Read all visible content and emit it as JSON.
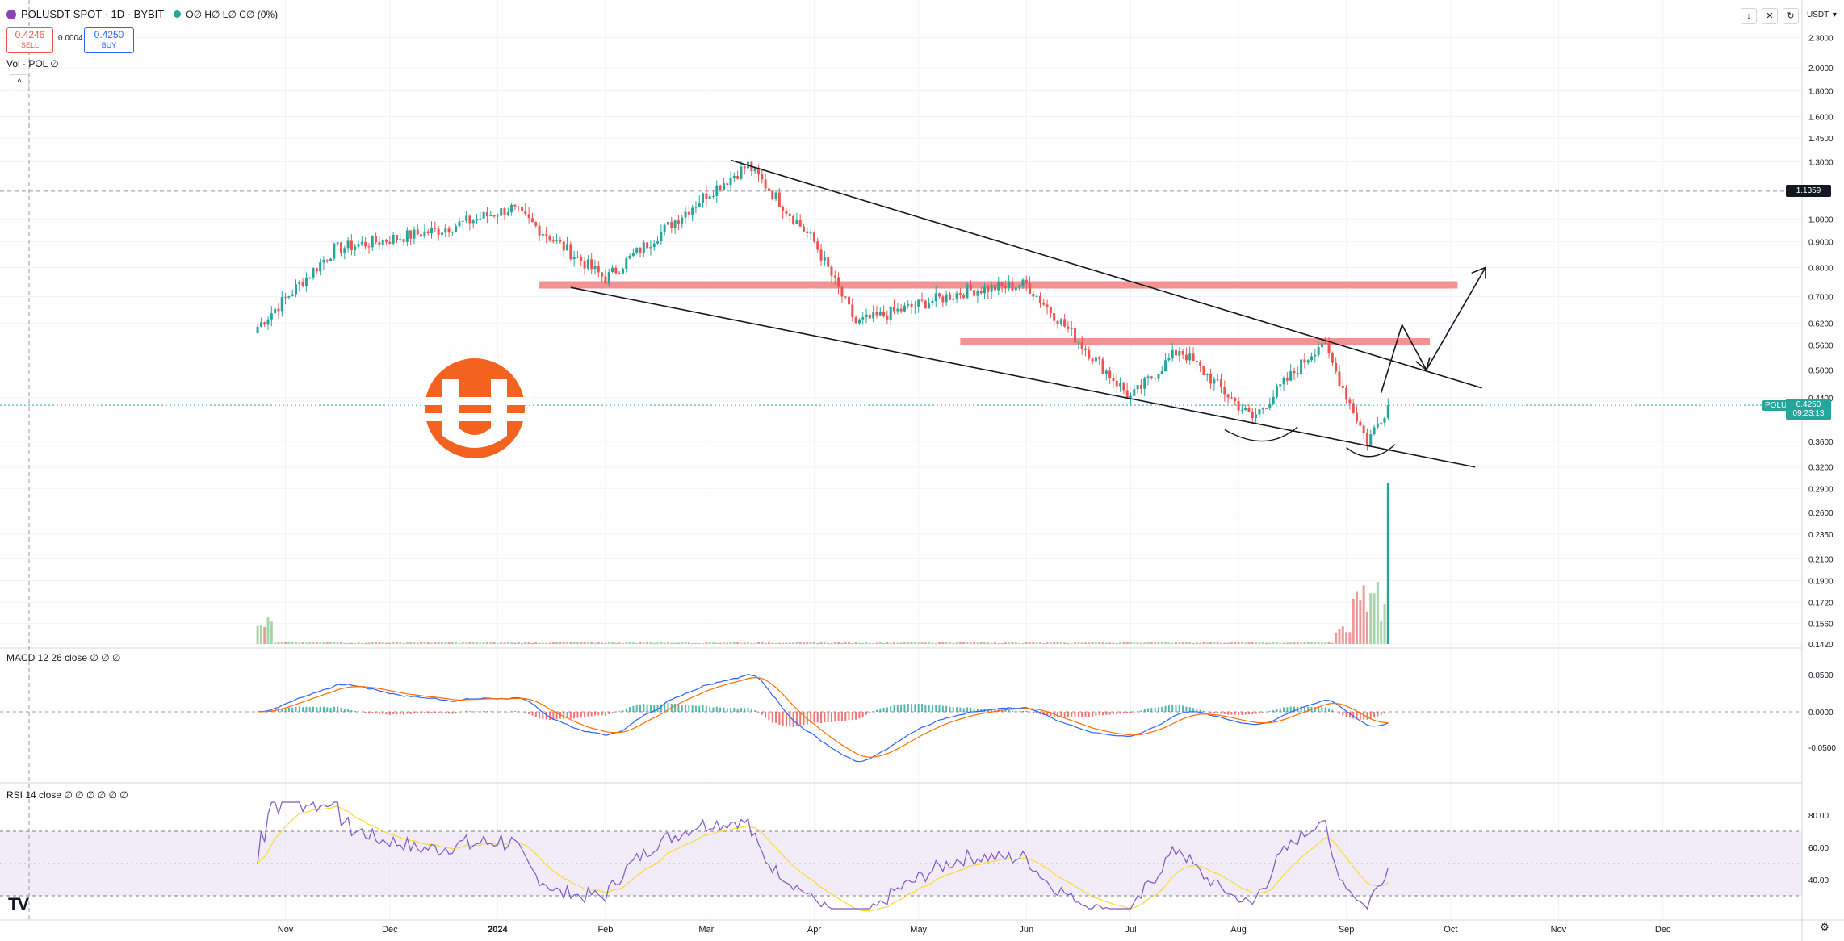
{
  "header": {
    "symbol": "POLUSDT SPOT · 1D · BYBIT",
    "ohlc": "O∅ H∅ L∅ C∅ (0%)",
    "sell_price": "0.4246",
    "sell_label": "SELL",
    "spread": "0.0004",
    "buy_price": "0.4250",
    "buy_label": "BUY",
    "volume_label": "Vol · POL ∅",
    "collapse_glyph": "^"
  },
  "toolbar": {
    "currency": "USDT",
    "down_icon": "↓",
    "expand_icon": "✕",
    "refresh_icon": "↻"
  },
  "price_axis": {
    "labels": [
      "2.3000",
      "2.0000",
      "1.8000",
      "1.6000",
      "1.4500",
      "1.3000",
      "1.0000",
      "0.9000",
      "0.8000",
      "0.7000",
      "0.6200",
      "0.5600",
      "0.5000",
      "0.4400",
      "0.3600",
      "0.3200",
      "0.2900",
      "0.2600",
      "0.2350",
      "0.2100",
      "0.1900",
      "0.1720",
      "0.1560",
      "0.1420"
    ],
    "crosshair_price": "1.1359",
    "current_price": "0.4250",
    "countdown": "09:23:13",
    "ticker": "POLUSDT"
  },
  "macd": {
    "label": "MACD 12 26 close ∅ ∅ ∅",
    "axis": [
      "0.0500",
      "0.0000",
      "-0.0500"
    ]
  },
  "rsi": {
    "label": "RSI 14 close ∅ ∅ ∅ ∅ ∅ ∅",
    "axis": [
      "80.00",
      "60.00",
      "40.00"
    ]
  },
  "time_axis": [
    "Nov",
    "Dec",
    "2024",
    "Feb",
    "Mar",
    "Apr",
    "May",
    "Jun",
    "Jul",
    "Aug",
    "Sep",
    "Oct",
    "Nov",
    "Dec"
  ],
  "logo_text": "TV",
  "colors": {
    "up": "#26a69a",
    "down": "#ef5350",
    "zone": "#f08080",
    "macd": "#2962ff",
    "signal": "#ff6d00",
    "rsi": "#7e57c2",
    "rsi_ma": "#fdd835"
  },
  "chart_data": {
    "type": "candlestick",
    "symbol": "POLUSDT",
    "interval": "1D",
    "x": [
      "2023-10-24",
      "2023-11-15",
      "2023-12-15",
      "2024-01-05",
      "2024-02-01",
      "2024-03-01",
      "2024-03-13",
      "2024-04-01",
      "2024-04-13",
      "2024-05-15",
      "2024-06-01",
      "2024-07-01",
      "2024-07-15",
      "2024-08-05",
      "2024-08-25",
      "2024-09-07",
      "2024-09-13"
    ],
    "close": [
      0.61,
      0.87,
      0.95,
      1.05,
      0.76,
      1.12,
      1.28,
      0.9,
      0.62,
      0.72,
      0.74,
      0.44,
      0.55,
      0.4,
      0.57,
      0.36,
      0.425
    ],
    "last": 0.425,
    "ylim": [
      0.142,
      2.5
    ],
    "log_scale": true,
    "horizontal_zones": [
      0.74,
      0.57
    ],
    "indicators": [
      "Volume",
      "MACD 12 26 close",
      "RSI 14 close"
    ],
    "rsi_levels": [
      70,
      30
    ]
  }
}
